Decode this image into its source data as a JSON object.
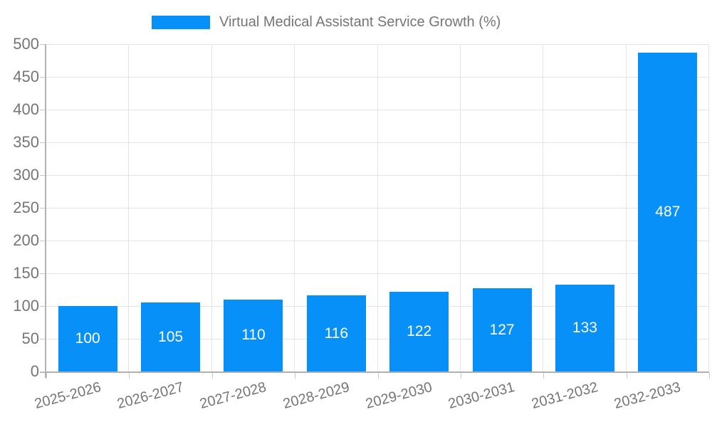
{
  "legend": {
    "label": "Virtual Medical Assistant Service Growth (%)"
  },
  "colors": {
    "bar": "#0790f8",
    "axis_text": "#757575",
    "grid_line": "#e4e4e4",
    "tick_line": "#c8c8c8",
    "axis_line": "#b0b0b0",
    "value_label": "#ffffff",
    "background": "#ffffff"
  },
  "chart_data": {
    "type": "bar",
    "title": "Virtual Medical Assistant Service Growth (%)",
    "series_name": "Virtual Medical Assistant Service Growth (%)",
    "categories": [
      "2025-2026",
      "2026-2027",
      "2027-2028",
      "2028-2029",
      "2029-2030",
      "2030-2031",
      "2031-2032",
      "2032-2033"
    ],
    "values": [
      100,
      105,
      110,
      116,
      122,
      127,
      133,
      487
    ],
    "xlabel": "",
    "ylabel": "",
    "ylim": [
      0,
      500
    ],
    "yticks": [
      0,
      50,
      100,
      150,
      200,
      250,
      300,
      350,
      400,
      450,
      500
    ],
    "grid": true,
    "legend_position": "top",
    "value_label_position": "inside-center",
    "x_tick_rotation_deg": -15
  }
}
